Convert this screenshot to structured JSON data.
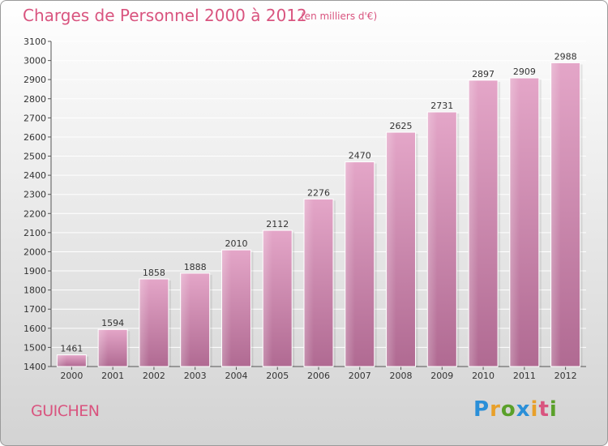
{
  "header": {
    "title": "Charges de Personnel 2000 à 2012",
    "subtitle": "(en milliers d'€)"
  },
  "footer": {
    "commune": "GUICHEN",
    "logo_letters": [
      "P",
      "r",
      "o",
      "x",
      "i",
      "t",
      "i"
    ],
    "logo_colors": [
      "#2a8fd8",
      "#e8a02a",
      "#5aa02a",
      "#2a8fd8",
      "#e8a02a",
      "#d9547f",
      "#5aa02a"
    ]
  },
  "chart_data": {
    "type": "bar",
    "title": "Charges de Personnel 2000 à 2012",
    "subtitle": "(en milliers d'€)",
    "categories": [
      "2000",
      "2001",
      "2002",
      "2003",
      "2004",
      "2005",
      "2006",
      "2007",
      "2008",
      "2009",
      "2010",
      "2011",
      "2012"
    ],
    "values": [
      1461,
      1594,
      1858,
      1888,
      2010,
      2112,
      2276,
      2470,
      2625,
      2731,
      2897,
      2909,
      2988
    ],
    "ylim": [
      1400,
      3100
    ],
    "yticks": [
      1400,
      1500,
      1600,
      1700,
      1800,
      1900,
      2000,
      2100,
      2200,
      2300,
      2400,
      2500,
      2600,
      2700,
      2800,
      2900,
      3000,
      3100
    ],
    "xlabel": "",
    "ylabel": "",
    "grid": true,
    "bar_color": "#c8709f"
  }
}
